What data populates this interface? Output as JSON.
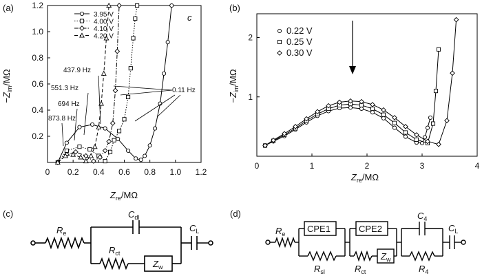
{
  "chart_data": [
    {
      "type": "line",
      "panel_label": "(a)",
      "corner_label": "c",
      "xlabel": "Z",
      "xlabel_sub": "re",
      "xlabel_unit": "/MΩ",
      "ylabel": "−Z",
      "ylabel_sub": "im",
      "ylabel_unit": "/MΩ",
      "xlim": [
        0,
        1.2
      ],
      "ylim": [
        0,
        1.2
      ],
      "xticks": [
        "0",
        "0.2",
        "0.4",
        "0.6",
        "0.8",
        "1.0",
        "1.2"
      ],
      "yticks": [
        "0.2",
        "0.4",
        "0.6",
        "0.8",
        "1.0",
        "1.2"
      ],
      "series": [
        {
          "name": "3.95 V",
          "marker": "circle",
          "dash": "solid",
          "x": [
            0.08,
            0.15,
            0.25,
            0.35,
            0.45,
            0.55,
            0.63,
            0.69,
            0.73,
            0.76,
            0.8,
            0.84,
            0.88,
            0.91,
            0.94,
            0.97
          ],
          "y": [
            0.0,
            0.15,
            0.27,
            0.29,
            0.26,
            0.18,
            0.09,
            0.03,
            0.02,
            0.05,
            0.13,
            0.26,
            0.45,
            0.68,
            0.92,
            1.2
          ]
        },
        {
          "name": "4.00 V",
          "marker": "square",
          "dash": "dotted",
          "x": [
            0.08,
            0.15,
            0.25,
            0.33,
            0.4,
            0.45,
            0.49,
            0.52,
            0.56,
            0.6,
            0.63,
            0.65,
            0.67,
            0.685,
            0.7
          ],
          "y": [
            0.0,
            0.09,
            0.12,
            0.1,
            0.05,
            0.01,
            0.08,
            0.17,
            0.24,
            0.33,
            0.5,
            0.72,
            0.95,
            1.1,
            1.2
          ]
        },
        {
          "name": "4.10 V",
          "marker": "diamond",
          "dash": "dashdot",
          "x": [
            0.08,
            0.15,
            0.22,
            0.3,
            0.36,
            0.41,
            0.45,
            0.48,
            0.51,
            0.53,
            0.545,
            0.56
          ],
          "y": [
            0.0,
            0.06,
            0.08,
            0.05,
            0.01,
            0.04,
            0.09,
            0.16,
            0.3,
            0.55,
            0.85,
            1.2
          ]
        },
        {
          "name": "4.20 V",
          "marker": "triangle",
          "dash": "dashed",
          "x": [
            0.08,
            0.14,
            0.2,
            0.26,
            0.3,
            0.34,
            0.37,
            0.4,
            0.42,
            0.44,
            0.46,
            0.48
          ],
          "y": [
            0.0,
            0.05,
            0.06,
            0.04,
            0.01,
            0.05,
            0.12,
            0.27,
            0.45,
            0.68,
            0.95,
            1.2
          ]
        }
      ],
      "annotations": [
        "437.9 Hz",
        "551.3 Hz",
        "694 Hz",
        "873.8 Hz",
        "0.11 Hz"
      ]
    },
    {
      "type": "line",
      "panel_label": "(b)",
      "xlabel": "Z",
      "xlabel_sub": "re",
      "xlabel_unit": "/MΩ",
      "ylabel": "−Z",
      "ylabel_sub": "im",
      "ylabel_unit": "/MΩ",
      "xlim": [
        0,
        4
      ],
      "ylim": [
        0,
        2.4
      ],
      "xticks": [
        "0",
        "1",
        "2",
        "3",
        "4"
      ],
      "yticks": [
        "1",
        "2"
      ],
      "series": [
        {
          "name": "0.22 V",
          "marker": "circle",
          "x": [
            0.15,
            0.3,
            0.5,
            0.7,
            0.9,
            1.1,
            1.3,
            1.5,
            1.7,
            1.9,
            2.1,
            2.3,
            2.5,
            2.7,
            2.9,
            3.0,
            3.05,
            3.1,
            3.15
          ],
          "y": [
            0.18,
            0.25,
            0.34,
            0.45,
            0.57,
            0.68,
            0.76,
            0.81,
            0.82,
            0.8,
            0.74,
            0.64,
            0.48,
            0.33,
            0.23,
            0.22,
            0.32,
            0.48,
            0.65
          ]
        },
        {
          "name": "0.25 V",
          "marker": "square",
          "x": [
            0.15,
            0.3,
            0.5,
            0.7,
            0.9,
            1.1,
            1.3,
            1.5,
            1.7,
            1.9,
            2.1,
            2.3,
            2.5,
            2.7,
            2.9,
            3.1,
            3.2,
            3.25,
            3.3
          ],
          "y": [
            0.18,
            0.26,
            0.36,
            0.47,
            0.6,
            0.71,
            0.8,
            0.86,
            0.88,
            0.86,
            0.8,
            0.7,
            0.56,
            0.4,
            0.28,
            0.22,
            0.55,
            1.1,
            1.8
          ]
        },
        {
          "name": "0.30 V",
          "marker": "diamond",
          "x": [
            0.15,
            0.3,
            0.5,
            0.7,
            0.9,
            1.1,
            1.3,
            1.5,
            1.7,
            1.9,
            2.1,
            2.3,
            2.5,
            2.7,
            2.9,
            3.1,
            3.3,
            3.45,
            3.55,
            3.62
          ],
          "y": [
            0.18,
            0.27,
            0.38,
            0.5,
            0.63,
            0.75,
            0.85,
            0.91,
            0.93,
            0.92,
            0.87,
            0.78,
            0.65,
            0.5,
            0.36,
            0.25,
            0.2,
            0.6,
            1.4,
            2.3
          ]
        }
      ]
    }
  ],
  "circuits": {
    "c": {
      "panel_label": "(c)",
      "Re": "R",
      "Re_sub": "e",
      "Cdl": "C",
      "Cdl_sub": "dl",
      "CL": "C",
      "CL_sub": "L",
      "Rct": "R",
      "Rct_sub": "ct",
      "Zw": "Z",
      "Zw_sub": "w"
    },
    "d": {
      "panel_label": "(d)",
      "Re": "R",
      "Re_sub": "e",
      "CPE1": "CPE1",
      "CPE2": "CPE2",
      "C4": "C",
      "C4_sub": "4",
      "CL": "C",
      "CL_sub": "L",
      "Rsl": "R",
      "Rsl_sub": "sl",
      "Rct": "R",
      "Rct_sub": "ct",
      "Zw": "Z",
      "Zw_sub": "w",
      "R4": "R",
      "R4_sub": "4"
    }
  }
}
